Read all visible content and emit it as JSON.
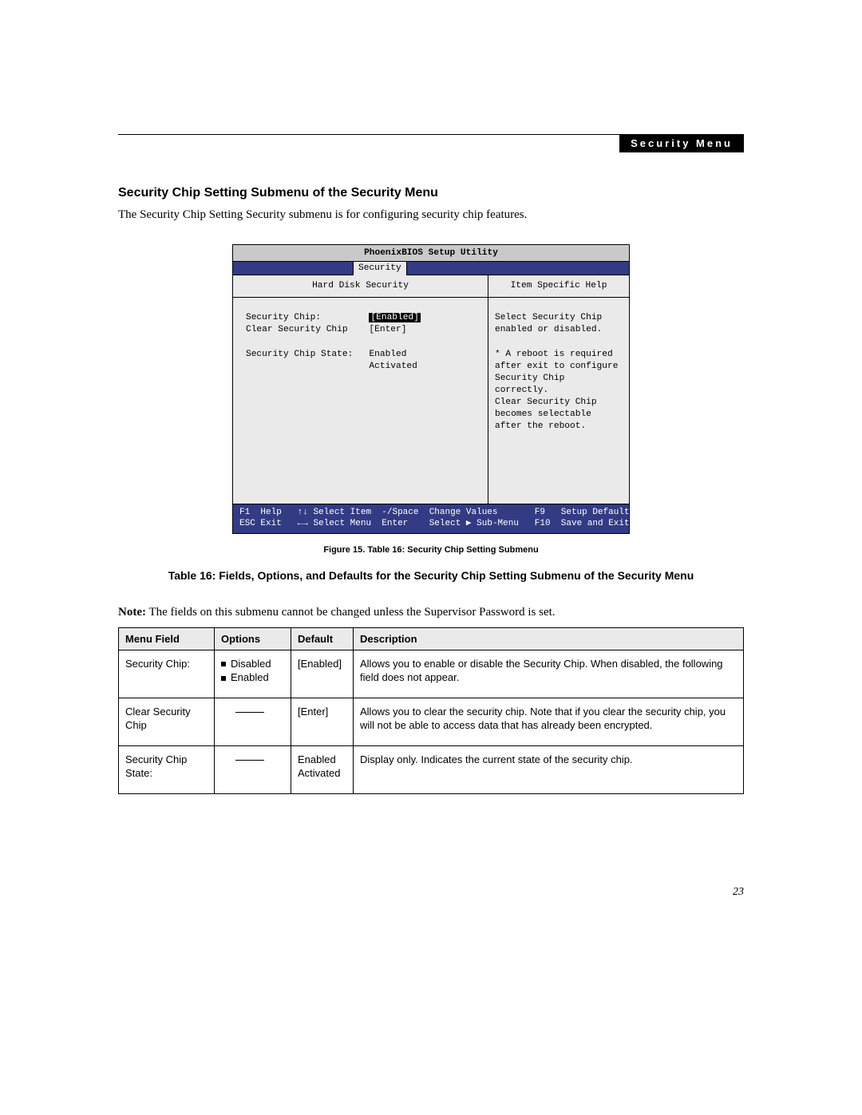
{
  "header": {
    "tab_label": "Security Menu"
  },
  "section": {
    "title": "Security Chip Setting Submenu of the Security Menu",
    "intro": "The Security Chip Setting Security submenu is for configuring security chip features."
  },
  "bios": {
    "title": "PhoenixBIOS Setup Utility",
    "active_tab": "Security",
    "left_header": "Hard Disk Security",
    "right_header": "Item Specific Help",
    "left_lines": {
      "l1_label": "Security Chip:",
      "l1_value": "[Enabled]",
      "l2_label": "Clear Security Chip",
      "l2_value": "[Enter]",
      "l3_label": "Security Chip State:",
      "l3_value1": "Enabled",
      "l3_value2": "Activated"
    },
    "help_text": "Select Security Chip\nenabled or disabled.\n\n* A reboot is required\nafter exit to configure\nSecurity Chip correctly.\nClear Security Chip\nbecomes selectable\nafter the reboot.",
    "footer": {
      "f1": "F1",
      "help": "Help",
      "updown": "↑↓",
      "select_item": "Select Item",
      "minus": "-/Space",
      "change": "Change Values",
      "f9": "F9",
      "setup_defaults": "Setup Defaults",
      "esc": "ESC",
      "exit": "Exit",
      "leftright": "←→",
      "select_menu": "Select Menu",
      "enter": "Enter",
      "submenu": "Select ▶ Sub-Menu",
      "f10": "F10",
      "save_exit": "Save and Exit"
    }
  },
  "figure_caption": "Figure 15.  Table 16: Security Chip Setting Submenu",
  "table_title": "Table 16: Fields, Options, and Defaults for the Security Chip Setting Submenu of the Security Menu",
  "note_prefix": "Note:",
  "note_text": " The fields on this submenu cannot be changed unless the Supervisor Password is set.",
  "table": {
    "headers": {
      "menu": "Menu Field",
      "options": "Options",
      "default": "Default",
      "description": "Description"
    },
    "rows": [
      {
        "menu": "Security Chip:",
        "opt1": "Disabled",
        "opt2": "Enabled",
        "default": "[Enabled]",
        "description": "Allows you to enable or disable the Security Chip. When disabled, the following field does not appear."
      },
      {
        "menu": "Clear Security Chip",
        "default": "[Enter]",
        "description": "Allows you to clear the security chip. Note that if you clear the security chip, you will not be able to access data that has already been encrypted."
      },
      {
        "menu": "Security Chip State:",
        "default": "Enabled\nActivated",
        "description": "Display only. Indicates the current state of the security chip."
      }
    ]
  },
  "page_number": "23"
}
